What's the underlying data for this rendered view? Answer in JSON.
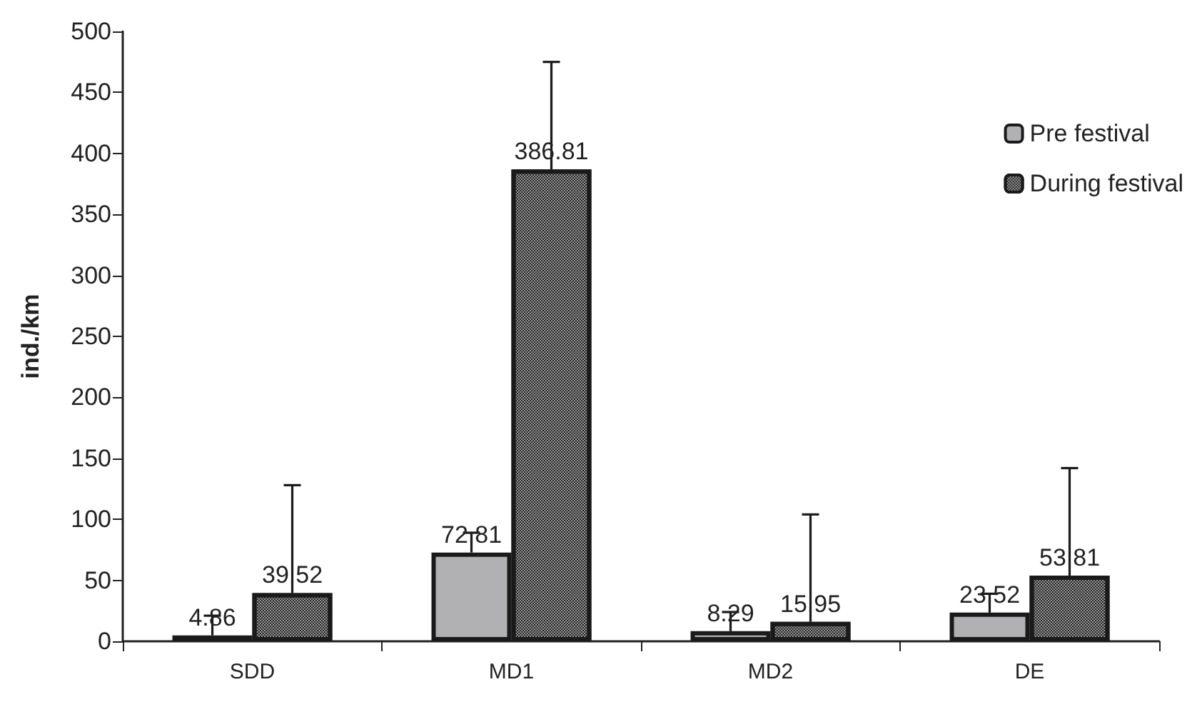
{
  "chart_data": {
    "type": "bar",
    "ylabel": "ind./km",
    "categories": [
      "SDD",
      "MD1",
      "MD2",
      "DE"
    ],
    "series": [
      {
        "name": "Pre festival",
        "color": "#b1b1b3",
        "values": [
          4.86,
          72.81,
          8.29,
          23.52
        ],
        "errors": [
          [
            4.86,
            21
          ],
          [
            72.81,
            89
          ],
          [
            8.29,
            24
          ],
          [
            23.52,
            39
          ]
        ]
      },
      {
        "name": "During festival",
        "color": "#9a9a9a",
        "values": [
          39.52,
          386.81,
          15.95,
          53.81
        ],
        "errors": [
          [
            39.52,
            128
          ],
          [
            386.81,
            475
          ],
          [
            15.95,
            104
          ],
          [
            53.81,
            142
          ]
        ]
      }
    ],
    "ylim": [
      0,
      500
    ],
    "yticks": [
      0,
      50,
      100,
      150,
      200,
      250,
      300,
      350,
      400,
      450,
      500
    ],
    "grid": false,
    "legend": "top right",
    "data_labels": true
  }
}
